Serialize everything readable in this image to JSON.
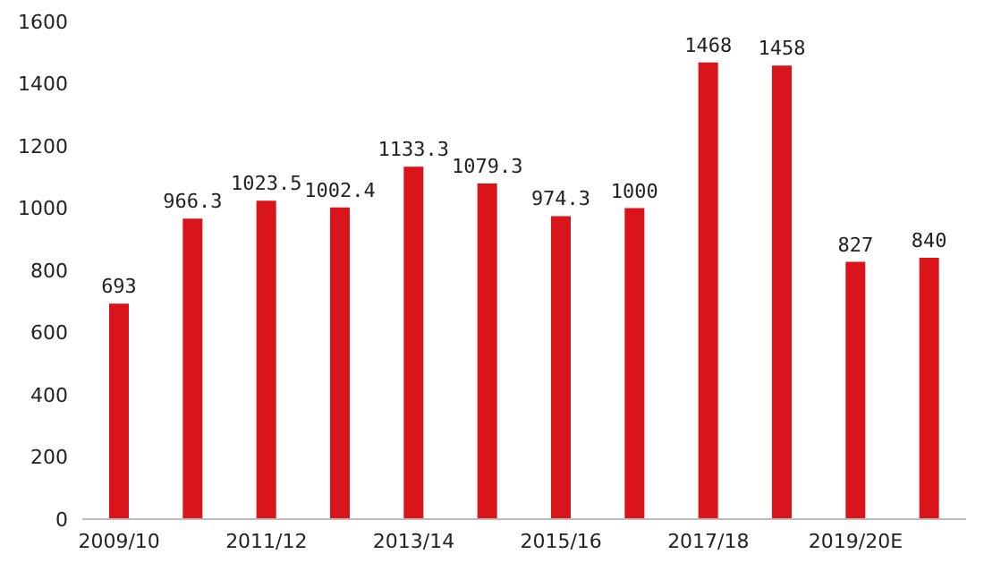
{
  "chart_data": {
    "type": "bar",
    "categories": [
      "2009/10",
      null,
      "2011/12",
      null,
      "2013/14",
      null,
      "2015/16",
      null,
      "2017/18",
      null,
      "2019/20E",
      null
    ],
    "values": [
      693,
      966.3,
      1023.5,
      1002.4,
      1133.3,
      1079.3,
      974.3,
      1000,
      1468,
      1458,
      827,
      840
    ],
    "color": "#d9141b",
    "ylim": [
      0,
      1600
    ],
    "yticks": [
      0,
      200,
      400,
      600,
      800,
      1000,
      1200,
      1400,
      1600
    ],
    "grid": false,
    "legend": false,
    "data_labels": true
  }
}
